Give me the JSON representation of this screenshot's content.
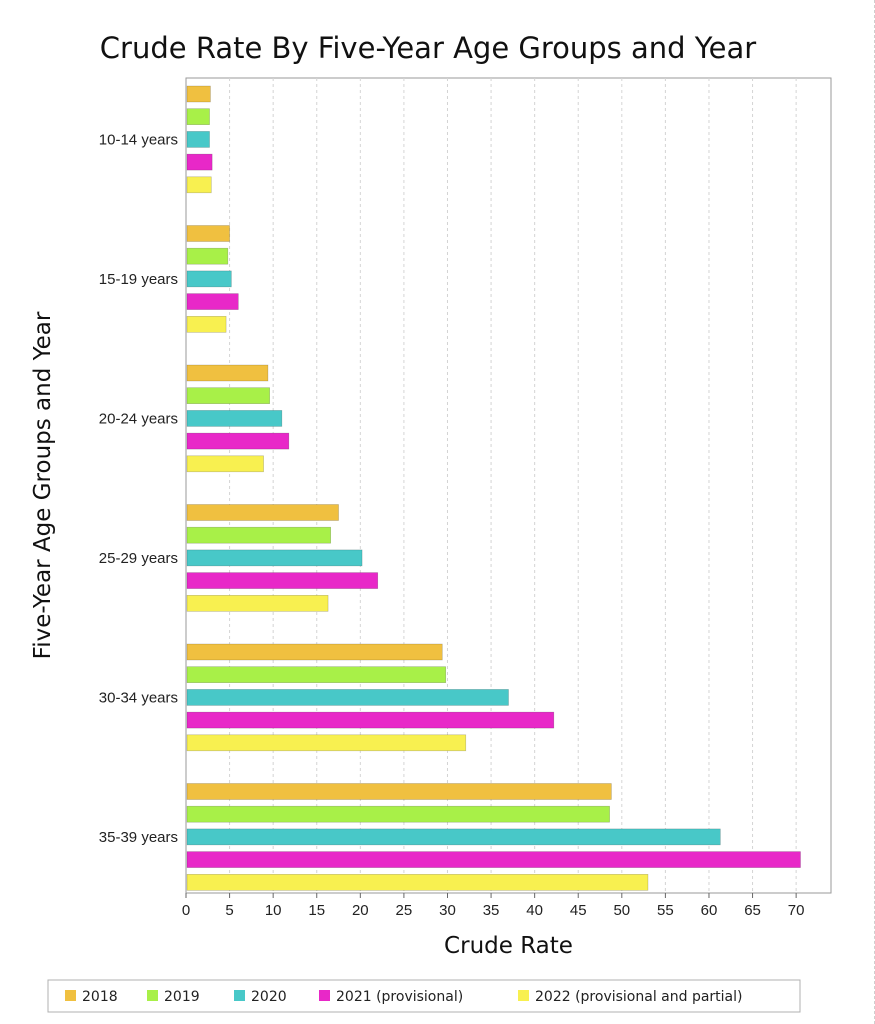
{
  "chart_data": {
    "type": "bar",
    "orientation": "horizontal",
    "title": "Crude Rate By Five-Year Age Groups and Year",
    "xlabel": "Crude Rate",
    "ylabel": "Five-Year Age Groups and Year",
    "xlim": [
      0,
      74
    ],
    "xticks": [
      "0",
      "5",
      "10",
      "15",
      "20",
      "25",
      "30",
      "35",
      "40",
      "45",
      "50",
      "55",
      "60",
      "65",
      "70"
    ],
    "grid": "vertical dashed",
    "legend_position": "bottom",
    "categories": [
      "10-14 years",
      "15-19 years",
      "20-24 years",
      "25-29 years",
      "30-34 years",
      "35-39 years"
    ],
    "series": [
      {
        "name": "2018",
        "color": "#F0C040",
        "values": [
          2.8,
          5.0,
          9.4,
          17.5,
          29.4,
          48.8
        ]
      },
      {
        "name": "2019",
        "color": "#A8F048",
        "values": [
          2.7,
          4.8,
          9.6,
          16.6,
          29.8,
          48.6
        ]
      },
      {
        "name": "2020",
        "color": "#48C8C8",
        "values": [
          2.7,
          5.2,
          11.0,
          20.2,
          37.0,
          61.3
        ]
      },
      {
        "name": "2021 (provisional)",
        "color": "#E828C8",
        "values": [
          3.0,
          6.0,
          11.8,
          22.0,
          42.2,
          70.5
        ]
      },
      {
        "name": "2022 (provisional and partial)",
        "color": "#F8F050",
        "values": [
          2.9,
          4.6,
          8.9,
          16.3,
          32.1,
          53.0
        ]
      }
    ]
  }
}
